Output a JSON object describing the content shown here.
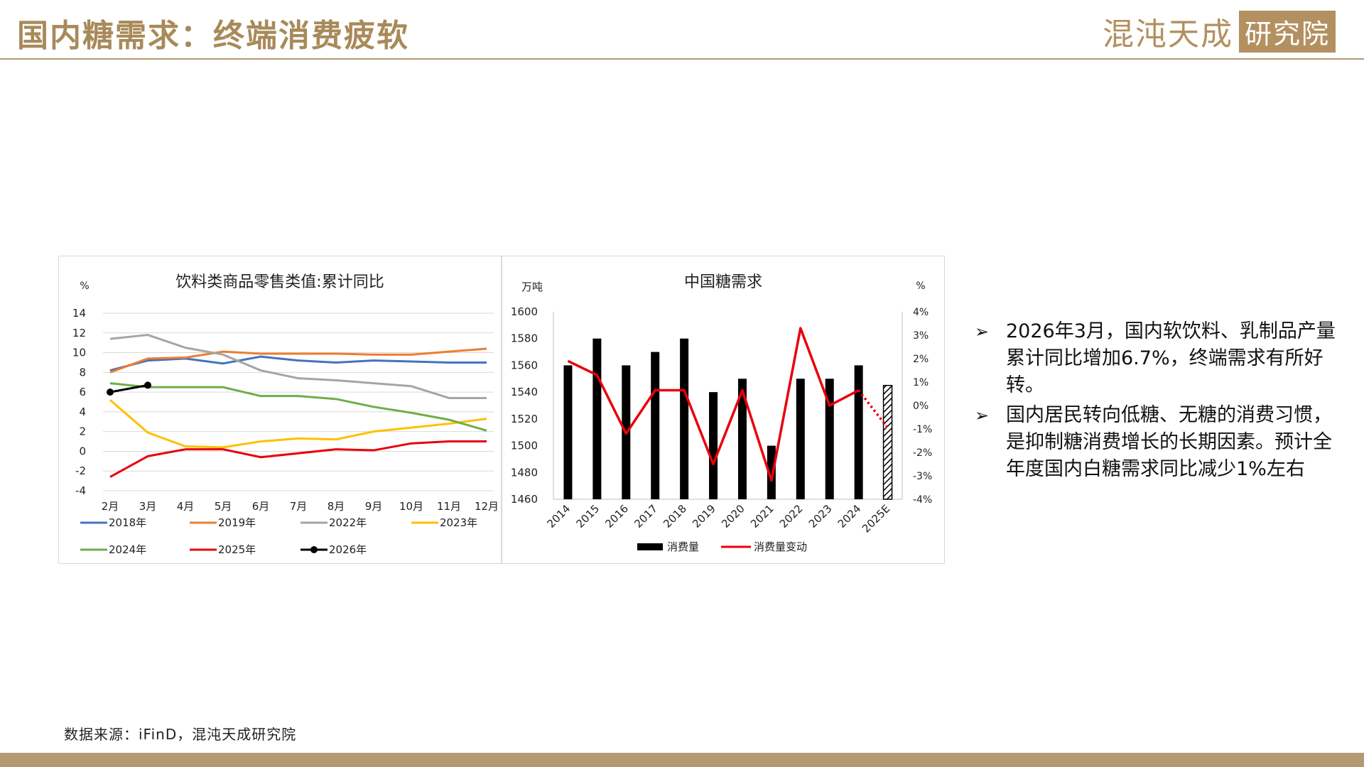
{
  "page": {
    "title": "国内糖需求：终端消费疲软",
    "logo_brand": "混沌天成",
    "logo_inst": "研究院",
    "source": "数据来源：iFinD，混沌天成研究院",
    "bullets": [
      "2026年3月，国内软饮料、乳制品产量累计同比增加6.7%，终端需求有所好转。",
      "国内居民转向低糖、无糖的消费习惯，是抑制糖消费增长的长期因素。预计全年度国内白糖需求同比减少1%左右"
    ],
    "colors": {
      "accent": "#b39a72",
      "title": "#a88a5a"
    }
  },
  "chart_data": [
    {
      "type": "line",
      "title": "饮料类商品零售类值:累计同比",
      "ylabel": "%",
      "categories": [
        "2月",
        "3月",
        "4月",
        "5月",
        "6月",
        "7月",
        "8月",
        "9月",
        "10月",
        "11月",
        "12月"
      ],
      "ylim": [
        -4,
        14
      ],
      "yticks": [
        -4,
        -2,
        0,
        2,
        4,
        6,
        8,
        10,
        12,
        14
      ],
      "grid": true,
      "legend_position": "bottom",
      "series": [
        {
          "name": "2018年",
          "color": "#4472c4",
          "values": [
            8.2,
            9.2,
            9.4,
            8.9,
            9.6,
            9.2,
            9.0,
            9.2,
            9.1,
            9.0,
            9.0
          ]
        },
        {
          "name": "2019年",
          "color": "#ed7d31",
          "values": [
            8.0,
            9.4,
            9.5,
            10.1,
            9.9,
            9.9,
            9.9,
            9.8,
            9.8,
            10.1,
            10.4
          ]
        },
        {
          "name": "2022年",
          "color": "#a5a5a5",
          "values": [
            11.4,
            11.8,
            10.5,
            9.8,
            8.2,
            7.4,
            7.2,
            6.9,
            6.6,
            5.4,
            5.4
          ]
        },
        {
          "name": "2023年",
          "color": "#ffc000",
          "values": [
            5.2,
            1.9,
            0.5,
            0.4,
            1.0,
            1.3,
            1.2,
            2.0,
            2.4,
            2.8,
            3.3
          ]
        },
        {
          "name": "2024年",
          "color": "#70ad47",
          "values": [
            6.9,
            6.5,
            6.5,
            6.5,
            5.6,
            5.6,
            5.3,
            4.5,
            3.9,
            3.2,
            2.1
          ]
        },
        {
          "name": "2025年",
          "color": "#e8000b",
          "values": [
            -2.6,
            -0.5,
            0.2,
            0.2,
            -0.6,
            -0.2,
            0.2,
            0.1,
            0.8,
            1.0,
            1.0
          ]
        },
        {
          "name": "2026年",
          "color": "#000000",
          "marker": true,
          "values": [
            6.0,
            6.7,
            null,
            null,
            null,
            null,
            null,
            null,
            null,
            null,
            null
          ]
        }
      ]
    },
    {
      "type": "bar",
      "title": "中国糖需求",
      "ylabel": "万吨",
      "y2label": "%",
      "categories": [
        "2014",
        "2015",
        "2016",
        "2017",
        "2018",
        "2019",
        "2020",
        "2021",
        "2022",
        "2023",
        "2024",
        "2025E"
      ],
      "ylim": [
        1460,
        1600
      ],
      "yticks": [
        1460,
        1480,
        1500,
        1520,
        1540,
        1560,
        1580,
        1600
      ],
      "y2lim": [
        -4,
        4
      ],
      "y2ticks": [
        "-4%",
        "-3%",
        "-2%",
        "-1%",
        "0%",
        "1%",
        "2%",
        "3%",
        "4%"
      ],
      "legend_position": "bottom",
      "series": [
        {
          "name": "消费量",
          "type": "bar",
          "color": "#000000",
          "values": [
            1560,
            1580,
            1560,
            1570,
            1580,
            1540,
            1550,
            1500,
            1550,
            1550,
            1560,
            1545
          ],
          "estimate_index": 11
        },
        {
          "name": "消费量变动",
          "type": "line",
          "axis": "y2",
          "color": "#e8000b",
          "values": [
            1.9,
            1.3,
            -1.2,
            0.65,
            0.65,
            -2.5,
            0.65,
            -3.2,
            3.3,
            0.0,
            0.65,
            -0.95
          ],
          "estimate_index": 11
        }
      ]
    }
  ]
}
